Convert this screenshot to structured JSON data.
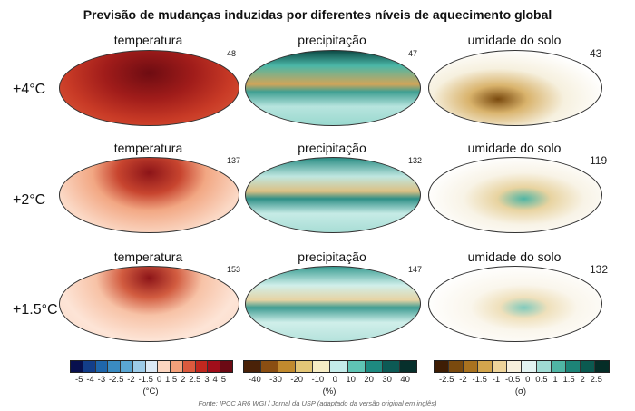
{
  "title": "Previsão de mudanças induzidas por diferentes níveis de aquecimento global",
  "columns": [
    "temperatura",
    "precipitação",
    "umidade do solo"
  ],
  "rows": [
    {
      "label": "+4°C",
      "counts": [
        "48",
        "47",
        "43"
      ]
    },
    {
      "label": "+2°C",
      "counts": [
        "137",
        "132",
        "119"
      ]
    },
    {
      "label": "+1.5°C",
      "counts": [
        "153",
        "147",
        "132"
      ]
    }
  ],
  "colorbars": [
    {
      "unit": "(°C)",
      "ticks": [
        "-5",
        "-4",
        "-3",
        "-2.5",
        "-2",
        "-1.5",
        "0",
        "1.5",
        "2",
        "2.5",
        "3",
        "4",
        "5"
      ],
      "colors": [
        "#08104e",
        "#133e8a",
        "#1f66ab",
        "#3a8bc2",
        "#5aa6d2",
        "#9ccbe8",
        "#dbe9f5",
        "#fcd5bf",
        "#f4a07a",
        "#dc5a3e",
        "#c0281f",
        "#a10e1a",
        "#6c0a14"
      ]
    },
    {
      "unit": "(%)",
      "ticks": [
        "-40",
        "-30",
        "-20",
        "-10",
        "0",
        "10",
        "20",
        "30",
        "40"
      ],
      "colors": [
        "#4a2208",
        "#8a4e12",
        "#c18a2e",
        "#e3c677",
        "#f6ecc4",
        "#c4ecea",
        "#5fc4b4",
        "#1e8a80",
        "#0d5a55",
        "#07302c"
      ]
    },
    {
      "unit": "(σ)",
      "ticks": [
        "-2.5",
        "-2",
        "-1.5",
        "-1",
        "-0.5",
        "0",
        "0.5",
        "1",
        "1.5",
        "2",
        "2.5"
      ],
      "colors": [
        "#3e1d04",
        "#7a4a0e",
        "#a9721f",
        "#d2a54d",
        "#eed49a",
        "#f7f0dc",
        "#e2f3f1",
        "#9fdbd3",
        "#4fb5a4",
        "#1d8477",
        "#0b5a50",
        "#052d27"
      ]
    }
  ],
  "source": "Fonte: IPCC AR6 WGI / Jornal da USP (adaptado da versão original em inglês)"
}
